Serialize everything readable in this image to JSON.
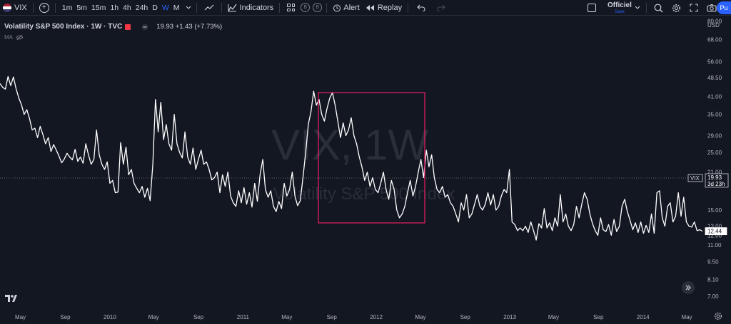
{
  "toolbar": {
    "symbol": "VIX",
    "intervals": [
      "1m",
      "5m",
      "15m",
      "1h",
      "4h",
      "24h",
      "D",
      "W",
      "M"
    ],
    "active_interval": "W",
    "indicators_label": "Indicators",
    "badge_1": "B",
    "badge_2": "B",
    "alert_label": "Alert",
    "replay_label": "Replay",
    "layout_name": "Officiel",
    "layout_status": "Save",
    "publish_label": "Pu"
  },
  "legend": {
    "title": "Volatility S&P 500 Index · 1W · TVC",
    "values": "19.93 +1.43 (+7.73%)",
    "ma_label": "MA"
  },
  "chart_data": {
    "type": "line",
    "title": "Volatility S&P 500 Index · 1W · TVC",
    "watermark_symbol": "VIX, 1W",
    "watermark_name": "Volatility S&P 500 Index",
    "currency": "USD",
    "y_scale": "log",
    "ylim": [
      6.2,
      84
    ],
    "y_ticks": [
      "80.00",
      "68.00",
      "56.00",
      "48.50",
      "41.00",
      "35.00",
      "29.00",
      "25.00",
      "21.00",
      "15.00",
      "13.00",
      "12.00",
      "11.00",
      "9.50",
      "8.10",
      "7.00"
    ],
    "x_ticks": [
      "May",
      "Sep",
      "2010",
      "May",
      "Sep",
      "2011",
      "May",
      "Sep",
      "2012",
      "May",
      "Sep",
      "2013",
      "May",
      "Sep",
      "2014",
      "May"
    ],
    "x_tick_dates": [
      "2009-05-01",
      "2009-09-01",
      "2010-01-01",
      "2010-05-01",
      "2010-09-01",
      "2011-01-01",
      "2011-05-01",
      "2011-09-01",
      "2012-01-01",
      "2012-05-01",
      "2012-09-01",
      "2013-01-01",
      "2013-05-01",
      "2013-09-01",
      "2014-01-01",
      "2014-05-01"
    ],
    "grid": false,
    "current_price": "19.93",
    "countdown": "3d 23h",
    "last_price": "12.44",
    "series": [
      {
        "values": [
          46.0,
          44.5,
          43.8,
          49.0,
          45.2,
          48.8,
          44.0,
          40.5,
          38.2,
          35.0,
          36.5,
          33.8,
          30.5,
          31.0,
          28.5,
          31.5,
          29.3,
          27.0,
          28.5,
          25.2,
          26.8,
          25.5,
          24.2,
          22.8,
          23.6,
          24.8,
          24.0,
          23.4,
          25.7,
          23.1,
          24.0,
          22.7,
          27.0,
          24.5,
          22.5,
          23.5,
          30.5,
          24.5,
          22.5,
          21.5,
          23.0,
          19.0,
          19.5,
          17.5,
          17.6,
          27.3,
          22.5,
          26.2,
          20.5,
          21.5,
          19.0,
          18.2,
          17.5,
          18.5,
          16.8,
          18.2,
          16.3,
          22.5,
          40.0,
          30.0,
          39.0,
          28.0,
          32.0,
          27.0,
          25.5,
          35.0,
          27.0,
          25.0,
          23.8,
          30.0,
          24.0,
          22.5,
          26.0,
          21.5,
          23.5,
          25.5,
          22.5,
          23.0,
          21.5,
          19.6,
          20.0,
          21.0,
          17.5,
          20.5,
          18.5,
          21.0,
          17.0,
          16.0,
          15.5,
          17.8,
          16.0,
          18.3,
          15.8,
          17.5,
          15.4,
          19.0,
          16.2,
          20.5,
          23.5,
          18.0,
          16.8,
          17.8,
          15.5,
          14.8,
          16.2,
          15.2,
          19.0,
          17.0,
          18.0,
          21.0,
          17.0,
          15.6,
          16.3,
          20.0,
          25.0,
          32.0,
          36.0,
          43.0,
          38.0,
          40.0,
          35.0,
          33.0,
          37.0,
          40.5,
          42.5,
          38.0,
          33.0,
          28.5,
          32.5,
          29.0,
          30.5,
          34.0,
          29.0,
          27.0,
          24.0,
          22.0,
          19.5,
          21.0,
          18.5,
          20.0,
          18.0,
          17.5,
          19.0,
          21.0,
          18.0,
          16.5,
          19.5,
          18.0,
          15.0,
          14.0,
          14.5,
          15.5,
          17.5,
          19.5,
          17.0,
          18.5,
          21.0,
          23.5,
          20.0,
          25.5,
          22.0,
          24.5,
          20.0,
          18.0,
          17.5,
          18.5,
          16.8,
          17.2,
          16.0,
          15.5,
          14.5,
          13.5,
          16.0,
          15.0,
          17.2,
          14.0,
          14.5,
          15.8,
          17.2,
          15.5,
          15.0,
          15.8,
          17.5,
          15.7,
          17.2,
          15.0,
          15.5,
          17.0,
          18.0,
          17.5,
          21.5,
          13.5,
          13.2,
          12.5,
          12.8,
          12.5,
          13.0,
          12.3,
          13.5,
          12.5,
          11.5,
          13.3,
          12.8,
          15.2,
          12.8,
          13.4,
          12.5,
          14.0,
          13.0,
          17.2,
          13.5,
          14.5,
          13.0,
          12.5,
          13.2,
          15.5,
          14.0,
          15.8,
          17.5,
          16.5,
          14.5,
          13.3,
          12.5,
          12.0,
          14.0,
          12.6,
          12.4,
          13.2,
          12.0,
          13.8,
          12.4,
          13.0,
          15.5,
          16.5,
          14.8,
          13.7,
          12.6,
          13.4,
          12.3,
          13.5,
          12.2,
          13.1,
          12.3,
          14.5,
          12.2,
          17.5,
          17.8,
          14.0,
          13.0,
          15.5,
          16.0,
          13.5,
          14.2,
          17.5,
          14.2,
          16.8,
          13.5,
          13.0,
          12.9,
          13.5,
          12.5,
          12.6,
          12.44
        ]
      }
    ],
    "annotation": "rectangle highlighting Aug 2011 – Feb 2012"
  },
  "colors": {
    "background": "#131722",
    "line": "#ffffff",
    "highlight_box": "#e91e63",
    "axis_text": "#b2b5be",
    "accent": "#2962ff",
    "live_dot": "#f23645"
  }
}
